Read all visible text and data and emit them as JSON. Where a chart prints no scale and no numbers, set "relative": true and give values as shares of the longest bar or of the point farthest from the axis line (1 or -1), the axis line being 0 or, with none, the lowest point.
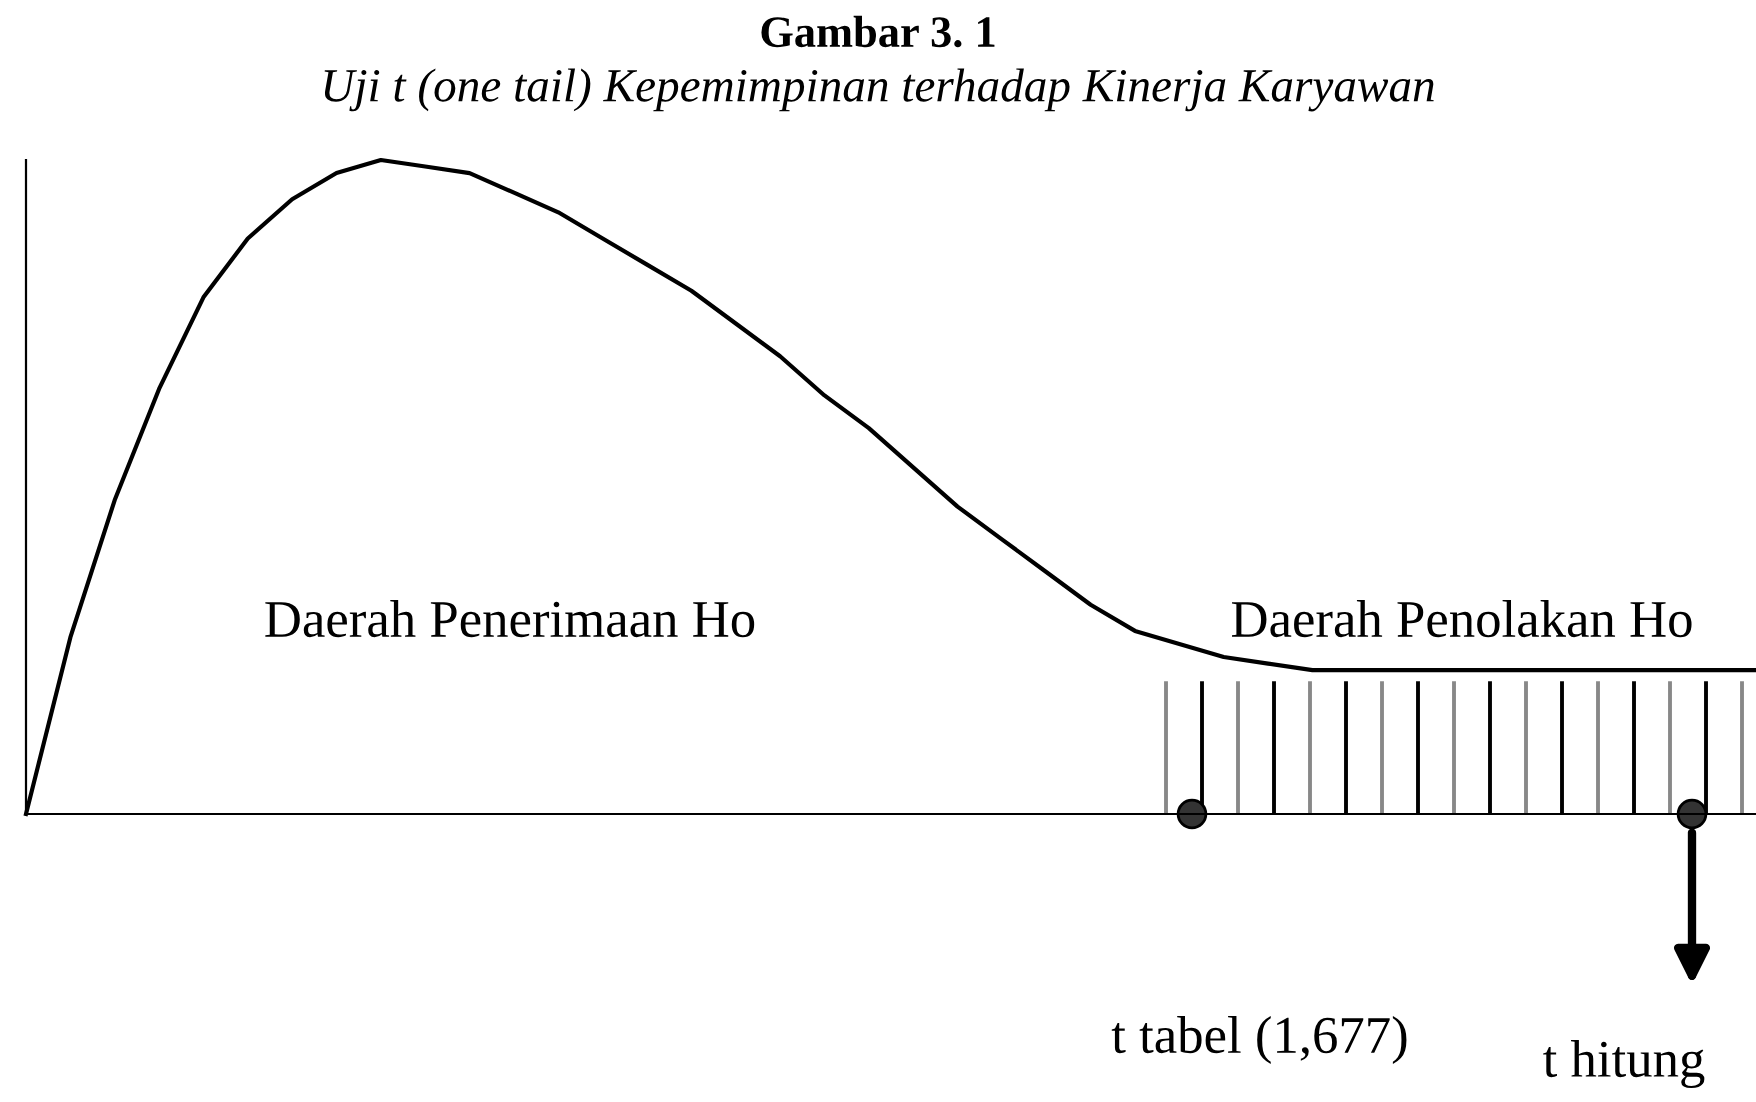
{
  "chart_data": {
    "type": "line",
    "title": "Gambar 3. 1",
    "subtitle": "Uji t (one tail) Kepemimpinan terhadap Kinerja Karyawan",
    "categories": [
      null,
      null,
      null,
      null,
      null,
      null,
      null,
      null,
      null,
      null,
      null,
      null,
      null,
      null,
      null,
      null,
      null,
      null,
      null,
      null,
      null,
      null,
      null,
      null,
      null,
      null,
      null,
      null,
      null,
      null,
      null,
      null,
      null,
      null,
      null,
      null,
      null,
      null,
      null,
      null
    ],
    "values": [
      0,
      0.27,
      0.48,
      0.65,
      0.79,
      0.88,
      0.94,
      0.98,
      1.0,
      0.99,
      0.98,
      0.95,
      0.92,
      0.88,
      0.84,
      0.8,
      0.75,
      0.7,
      0.64,
      0.59,
      0.53,
      0.47,
      0.42,
      0.37,
      0.32,
      0.28,
      0.26,
      0.24,
      0.23,
      0.22,
      0.22,
      0.22,
      0.22,
      0.22,
      0.22,
      0.22,
      0.22,
      0.22,
      0.22,
      0.22
    ],
    "color": "#000000",
    "relative": true,
    "legend": false,
    "marker": "none",
    "line_style": "solid",
    "annotations": [
      "Daerah Penerimaan Ho",
      "Daerah Penolakan Ho",
      "t tabel (1,677)",
      "t hitung"
    ]
  }
}
